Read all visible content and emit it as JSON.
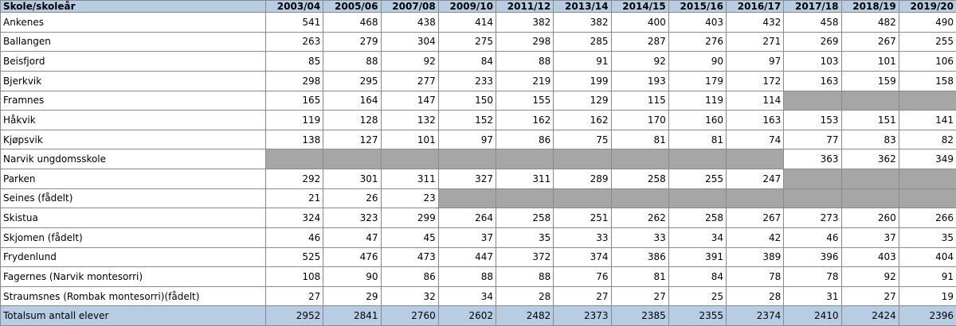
{
  "table": {
    "header": [
      "Skole/skoleår",
      "2003/04",
      "2005/06",
      "2007/08",
      "2009/10",
      "2011/12",
      "2013/14",
      "2014/15",
      "2015/16",
      "2016/17",
      "2017/18",
      "2018/19",
      "2019/20"
    ],
    "rows": [
      {
        "name": "Ankenes",
        "values": [
          541,
          468,
          438,
          414,
          382,
          382,
          400,
          403,
          432,
          458,
          482,
          490
        ]
      },
      {
        "name": "Ballangen",
        "values": [
          263,
          279,
          304,
          275,
          298,
          285,
          287,
          276,
          271,
          269,
          267,
          255
        ]
      },
      {
        "name": "Beisfjord",
        "values": [
          85,
          88,
          92,
          84,
          88,
          91,
          92,
          90,
          97,
          103,
          101,
          106
        ]
      },
      {
        "name": "Bjerkvik",
        "values": [
          298,
          295,
          277,
          233,
          219,
          199,
          193,
          179,
          172,
          163,
          159,
          158
        ]
      },
      {
        "name": "Framnes",
        "values": [
          165,
          164,
          147,
          150,
          155,
          129,
          115,
          119,
          114,
          null,
          null,
          null
        ]
      },
      {
        "name": "Håkvik",
        "values": [
          119,
          128,
          132,
          152,
          162,
          162,
          170,
          160,
          163,
          153,
          151,
          141
        ]
      },
      {
        "name": "Kjøpsvik",
        "values": [
          138,
          127,
          101,
          97,
          86,
          75,
          81,
          81,
          74,
          77,
          83,
          82
        ]
      },
      {
        "name": "Narvik ungdomsskole",
        "values": [
          null,
          null,
          null,
          null,
          null,
          null,
          null,
          null,
          null,
          363,
          362,
          349
        ]
      },
      {
        "name": "Parken",
        "values": [
          292,
          301,
          311,
          327,
          311,
          289,
          258,
          255,
          247,
          null,
          null,
          null
        ]
      },
      {
        "name": "Seines (fådelt)",
        "values": [
          21,
          26,
          23,
          null,
          null,
          null,
          null,
          null,
          null,
          null,
          null,
          null
        ]
      },
      {
        "name": "Skistua",
        "values": [
          324,
          323,
          299,
          264,
          258,
          251,
          262,
          258,
          267,
          273,
          260,
          266
        ]
      },
      {
        "name": "Skjomen (fådelt)",
        "values": [
          46,
          47,
          45,
          37,
          35,
          33,
          33,
          34,
          42,
          46,
          37,
          35
        ]
      },
      {
        "name": "Frydenlund",
        "values": [
          525,
          476,
          473,
          447,
          372,
          374,
          386,
          391,
          389,
          396,
          403,
          404
        ]
      },
      {
        "name": "Fagernes (Narvik montesorri)",
        "values": [
          108,
          90,
          86,
          88,
          88,
          76,
          81,
          84,
          78,
          78,
          92,
          91
        ]
      },
      {
        "name": "Straumsnes (Rombak montesorri)(fådelt)",
        "values": [
          27,
          29,
          32,
          34,
          28,
          27,
          27,
          25,
          28,
          31,
          27,
          19
        ]
      }
    ],
    "total": {
      "name": "Totalsum antall elever",
      "values": [
        2952,
        2841,
        2760,
        2602,
        2482,
        2373,
        2385,
        2355,
        2374,
        2410,
        2424,
        2396
      ]
    }
  }
}
